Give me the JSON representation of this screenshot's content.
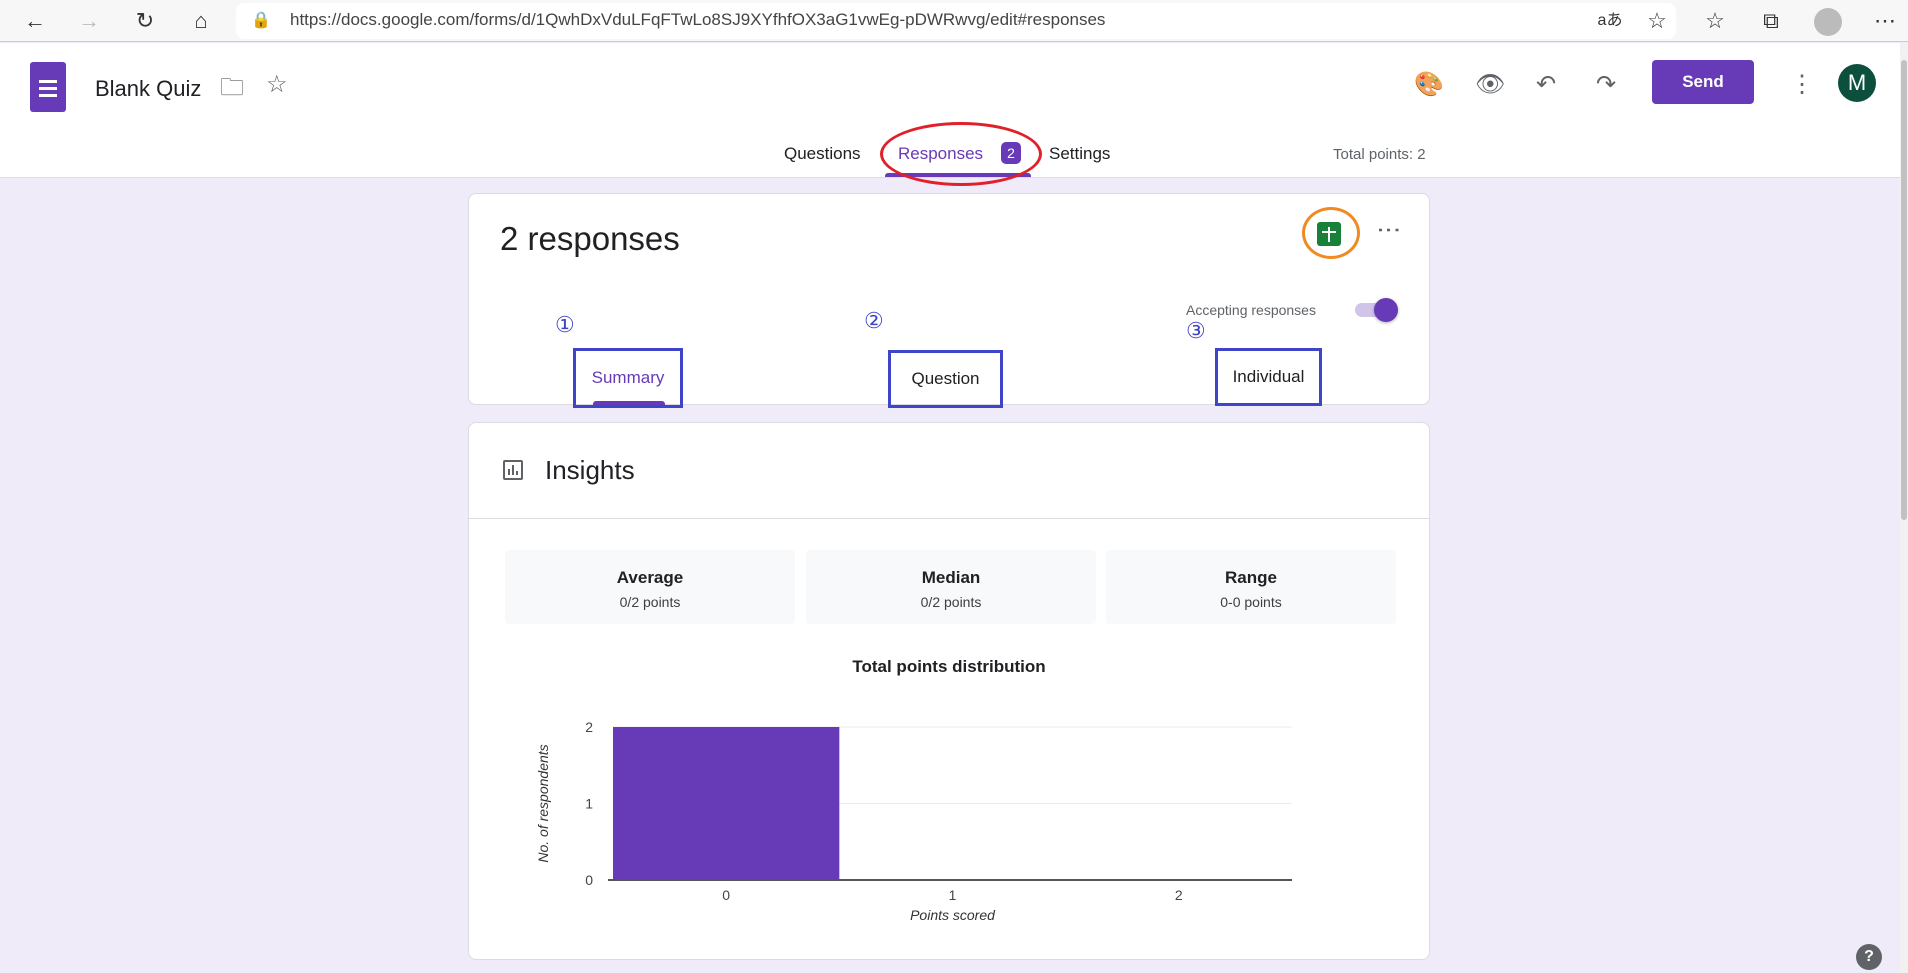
{
  "browser": {
    "url": "https://docs.google.com/forms/d/1QwhDxVduLFqFTwLo8SJ9XYfhfOX3aG1vwEg-pDWRwvg/edit#responses"
  },
  "header": {
    "title": "Blank Quiz",
    "send_label": "Send",
    "avatar_letter": "M",
    "total_points": "Total points: 2"
  },
  "tabs": [
    {
      "label": "Questions"
    },
    {
      "label": "Responses",
      "badge": "2"
    },
    {
      "label": "Settings"
    }
  ],
  "responses": {
    "count_label": "2 responses",
    "accepting_label": "Accepting responses",
    "accepting": true,
    "subtabs": [
      {
        "num": "①",
        "label": "Summary"
      },
      {
        "num": "②",
        "label": "Question"
      },
      {
        "num": "③",
        "label": "Individual"
      }
    ]
  },
  "insights": {
    "title": "Insights",
    "stats": [
      {
        "label": "Average",
        "value": "0/2 points"
      },
      {
        "label": "Median",
        "value": "0/2 points"
      },
      {
        "label": "Range",
        "value": "0-0 points"
      }
    ]
  },
  "colors": {
    "accent": "#673ab7",
    "annotation_red": "#e0202a",
    "annotation_orange": "#f08a24",
    "annotation_blue": "#3f45c8"
  },
  "chart_data": {
    "type": "bar",
    "title": "Total points distribution",
    "xlabel": "Points scored",
    "ylabel": "No. of respondents",
    "categories": [
      "0",
      "1",
      "2"
    ],
    "values": [
      2,
      0,
      0
    ],
    "ylim": [
      0,
      2
    ],
    "yticks": [
      "0",
      "1",
      "2"
    ],
    "grid": true
  }
}
